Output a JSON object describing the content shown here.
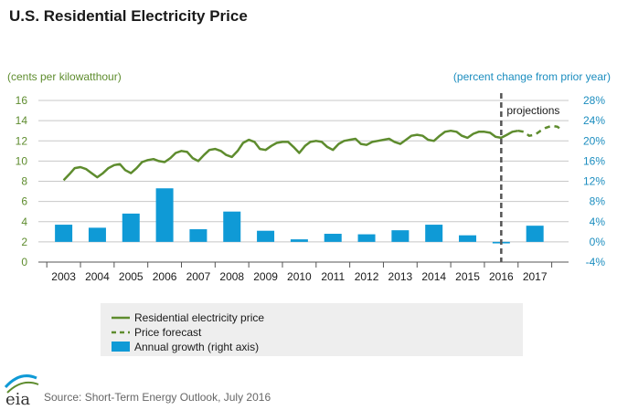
{
  "chart_data": {
    "type": "line+bar",
    "title": "U.S. Residential Electricity Price",
    "ylabel_left": "(cents per kilowatthour)",
    "ylabel_right": "(percent change from prior year)",
    "left_ticks": [
      "0",
      "2",
      "4",
      "6",
      "8",
      "10",
      "12",
      "14",
      "16"
    ],
    "right_ticks": [
      "-4%",
      "0%",
      "4%",
      "8%",
      "12%",
      "16%",
      "20%",
      "24%",
      "28%"
    ],
    "ylim_left": [
      0,
      16
    ],
    "ylim_right": [
      -4,
      28
    ],
    "x_labels": [
      "2003",
      "2004",
      "2005",
      "2006",
      "2007",
      "2008",
      "2009",
      "2010",
      "2011",
      "2012",
      "2013",
      "2014",
      "2015",
      "2016",
      "2017"
    ],
    "x_range": [
      2002.25,
      2018.0
    ],
    "grid": true,
    "annotation": "projections",
    "projection_start": 2016.0,
    "series": [
      {
        "name": "Residential electricity price",
        "kind": "line",
        "axis": "left",
        "points": [
          [
            2003.0,
            8.1
          ],
          [
            2003.17,
            8.7
          ],
          [
            2003.33,
            9.3
          ],
          [
            2003.5,
            9.4
          ],
          [
            2003.67,
            9.2
          ],
          [
            2003.83,
            8.8
          ],
          [
            2004.0,
            8.4
          ],
          [
            2004.17,
            8.8
          ],
          [
            2004.33,
            9.3
          ],
          [
            2004.5,
            9.6
          ],
          [
            2004.67,
            9.7
          ],
          [
            2004.83,
            9.1
          ],
          [
            2005.0,
            8.8
          ],
          [
            2005.17,
            9.3
          ],
          [
            2005.33,
            9.9
          ],
          [
            2005.5,
            10.1
          ],
          [
            2005.67,
            10.2
          ],
          [
            2005.83,
            10.0
          ],
          [
            2006.0,
            9.9
          ],
          [
            2006.17,
            10.3
          ],
          [
            2006.33,
            10.8
          ],
          [
            2006.5,
            11.0
          ],
          [
            2006.67,
            10.9
          ],
          [
            2006.83,
            10.3
          ],
          [
            2007.0,
            10.0
          ],
          [
            2007.17,
            10.6
          ],
          [
            2007.33,
            11.1
          ],
          [
            2007.5,
            11.2
          ],
          [
            2007.67,
            11.0
          ],
          [
            2007.83,
            10.6
          ],
          [
            2008.0,
            10.4
          ],
          [
            2008.17,
            11.0
          ],
          [
            2008.33,
            11.8
          ],
          [
            2008.5,
            12.1
          ],
          [
            2008.67,
            11.9
          ],
          [
            2008.83,
            11.2
          ],
          [
            2009.0,
            11.1
          ],
          [
            2009.17,
            11.5
          ],
          [
            2009.33,
            11.8
          ],
          [
            2009.5,
            11.9
          ],
          [
            2009.67,
            11.9
          ],
          [
            2009.83,
            11.4
          ],
          [
            2010.0,
            10.8
          ],
          [
            2010.17,
            11.5
          ],
          [
            2010.33,
            11.9
          ],
          [
            2010.5,
            12.0
          ],
          [
            2010.67,
            11.9
          ],
          [
            2010.83,
            11.4
          ],
          [
            2011.0,
            11.1
          ],
          [
            2011.17,
            11.7
          ],
          [
            2011.33,
            12.0
          ],
          [
            2011.5,
            12.1
          ],
          [
            2011.67,
            12.2
          ],
          [
            2011.83,
            11.7
          ],
          [
            2012.0,
            11.6
          ],
          [
            2012.17,
            11.9
          ],
          [
            2012.33,
            12.0
          ],
          [
            2012.5,
            12.1
          ],
          [
            2012.67,
            12.2
          ],
          [
            2012.83,
            11.9
          ],
          [
            2013.0,
            11.7
          ],
          [
            2013.17,
            12.1
          ],
          [
            2013.33,
            12.5
          ],
          [
            2013.5,
            12.6
          ],
          [
            2013.67,
            12.5
          ],
          [
            2013.83,
            12.1
          ],
          [
            2014.0,
            12.0
          ],
          [
            2014.17,
            12.5
          ],
          [
            2014.33,
            12.9
          ],
          [
            2014.5,
            13.0
          ],
          [
            2014.67,
            12.9
          ],
          [
            2014.83,
            12.5
          ],
          [
            2015.0,
            12.3
          ],
          [
            2015.17,
            12.7
          ],
          [
            2015.33,
            12.9
          ],
          [
            2015.5,
            12.9
          ],
          [
            2015.67,
            12.8
          ],
          [
            2015.83,
            12.4
          ],
          [
            2016.0,
            12.3
          ],
          [
            2016.17,
            12.6
          ],
          [
            2016.33,
            12.9
          ],
          [
            2016.5,
            13.0
          ]
        ]
      },
      {
        "name": "Price forecast",
        "kind": "dashed-line",
        "axis": "left",
        "points": [
          [
            2016.5,
            13.0
          ],
          [
            2016.67,
            12.9
          ],
          [
            2016.83,
            12.5
          ],
          [
            2017.0,
            12.6
          ],
          [
            2017.17,
            13.0
          ],
          [
            2017.33,
            13.3
          ],
          [
            2017.5,
            13.5
          ],
          [
            2017.67,
            13.4
          ],
          [
            2017.83,
            13.0
          ]
        ]
      },
      {
        "name": "Annual growth (right axis)",
        "kind": "bar",
        "axis": "right",
        "x": [
          2003,
          2004,
          2005,
          2006,
          2007,
          2008,
          2009,
          2010,
          2011,
          2012,
          2013,
          2014,
          2015,
          2016,
          2017
        ],
        "values": [
          3.4,
          2.8,
          5.6,
          10.6,
          2.5,
          6.0,
          2.2,
          0.5,
          1.6,
          1.5,
          2.3,
          3.4,
          1.3,
          -0.3,
          3.2
        ]
      }
    ],
    "legend_position": "bottom-center"
  },
  "source": "Source: Short-Term Energy Outlook, July 2016",
  "logo": "eia",
  "colors": {
    "line": "#5e8c2e",
    "bar": "#0f9ad6",
    "left_axis": "#5e8c2e",
    "right_axis": "#1b8dbf",
    "grid": "#c8c8c8",
    "legend_bg": "#eeeeee",
    "divider": "#555555"
  }
}
